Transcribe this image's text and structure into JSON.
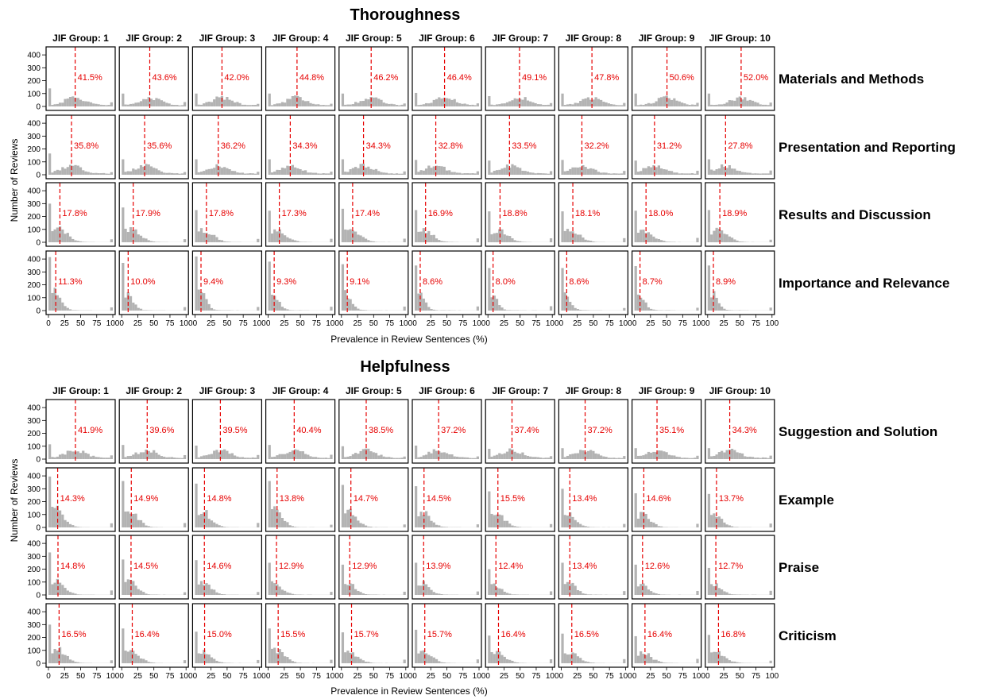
{
  "chart_data": [
    {
      "type": "bar",
      "title": "Thoroughness",
      "xlabel": "Prevalence in Review Sentences (%)",
      "ylabel": "Number of Reviews",
      "xlim": [
        0,
        100
      ],
      "ylim": [
        0,
        450
      ],
      "yticks": [
        0,
        100,
        200,
        300,
        400
      ],
      "xticks": [
        0,
        25,
        50,
        75,
        100
      ],
      "groups": [
        "JIF Group: 1",
        "JIF Group: 2",
        "JIF Group: 3",
        "JIF Group: 4",
        "JIF Group: 5",
        "JIF Group: 6",
        "JIF Group: 7",
        "JIF Group: 8",
        "JIF Group: 9",
        "JIF Group: 10"
      ],
      "categories": [
        "Materials and Methods",
        "Presentation and Reporting",
        "Results and Discussion",
        "Importance and Relevance"
      ],
      "median_labels": [
        [
          "41.5%",
          "43.6%",
          "42.0%",
          "44.8%",
          "46.2%",
          "46.4%",
          "49.1%",
          "47.8%",
          "50.6%",
          "52.0%"
        ],
        [
          "35.8%",
          "35.6%",
          "36.2%",
          "34.3%",
          "34.3%",
          "32.8%",
          "33.5%",
          "32.2%",
          "31.2%",
          "27.8%"
        ],
        [
          "17.8%",
          "17.9%",
          "17.8%",
          "17.3%",
          "17.4%",
          "16.9%",
          "18.8%",
          "18.1%",
          "18.0%",
          "18.9%"
        ],
        [
          "11.3%",
          "10.0%",
          "9.4%",
          "9.3%",
          "9.1%",
          "8.6%",
          "8.0%",
          "8.6%",
          "8.7%",
          "8.9%"
        ]
      ],
      "first_bin": [
        [
          140,
          100,
          100,
          100,
          100,
          105,
          80,
          100,
          100,
          100
        ],
        [
          165,
          120,
          120,
          120,
          120,
          115,
          110,
          115,
          110,
          120
        ],
        [
          300,
          270,
          250,
          245,
          260,
          250,
          240,
          240,
          245,
          250
        ],
        [
          415,
          370,
          420,
          380,
          360,
          350,
          330,
          330,
          345,
          350
        ]
      ],
      "median_line_color": "#e60000",
      "bar_color": "#b3b3b3"
    },
    {
      "type": "bar",
      "title": "Helpfulness",
      "xlabel": "Prevalence in Review Sentences (%)",
      "ylabel": "Number of Reviews",
      "xlim": [
        0,
        100
      ],
      "ylim": [
        0,
        450
      ],
      "yticks": [
        0,
        100,
        200,
        300,
        400
      ],
      "xticks": [
        0,
        25,
        50,
        75,
        100
      ],
      "groups": [
        "JIF Group: 1",
        "JIF Group: 2",
        "JIF Group: 3",
        "JIF Group: 4",
        "JIF Group: 5",
        "JIF Group: 6",
        "JIF Group: 7",
        "JIF Group: 8",
        "JIF Group: 9",
        "JIF Group: 10"
      ],
      "categories": [
        "Suggestion and Solution",
        "Example",
        "Praise",
        "Criticism"
      ],
      "median_labels": [
        [
          "41.9%",
          "39.6%",
          "39.5%",
          "40.4%",
          "38.5%",
          "37.2%",
          "37.4%",
          "37.2%",
          "35.1%",
          "34.3%"
        ],
        [
          "14.3%",
          "14.9%",
          "14.8%",
          "13.8%",
          "14.7%",
          "14.5%",
          "15.5%",
          "13.4%",
          "14.6%",
          "13.7%"
        ],
        [
          "14.8%",
          "14.5%",
          "14.6%",
          "12.9%",
          "12.9%",
          "13.9%",
          "12.4%",
          "13.4%",
          "12.6%",
          "12.7%"
        ],
        [
          "16.5%",
          "16.4%",
          "15.0%",
          "15.5%",
          "15.7%",
          "15.7%",
          "16.4%",
          "16.5%",
          "16.4%",
          "16.8%"
        ]
      ],
      "first_bin": [
        [
          115,
          110,
          105,
          110,
          100,
          105,
          80,
          85,
          85,
          85
        ],
        [
          395,
          360,
          340,
          360,
          330,
          320,
          280,
          300,
          265,
          260
        ],
        [
          330,
          275,
          270,
          250,
          235,
          250,
          200,
          250,
          235,
          210
        ],
        [
          300,
          270,
          245,
          270,
          240,
          260,
          215,
          230,
          210,
          220
        ]
      ],
      "median_line_color": "#e60000",
      "bar_color": "#b3b3b3"
    }
  ]
}
